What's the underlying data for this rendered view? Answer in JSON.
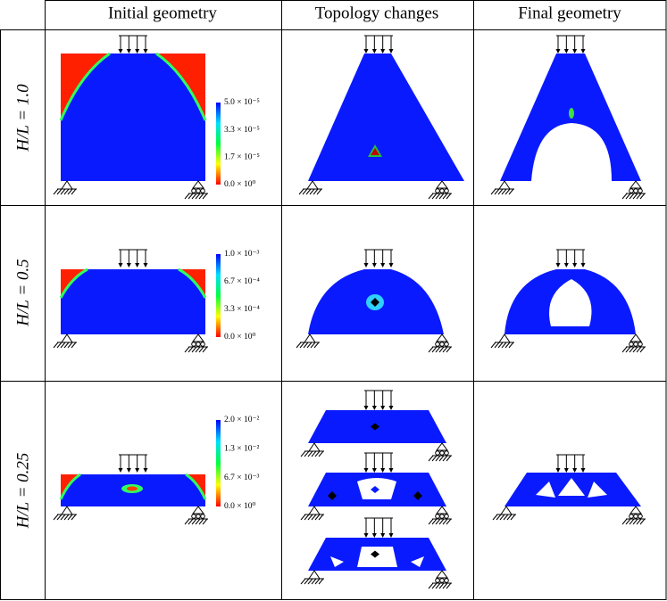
{
  "header": {
    "columns": [
      "Initial geometry",
      "Topology changes",
      "Final geometry"
    ]
  },
  "rows": [
    {
      "label": "H/L = 1.0",
      "colorbar": [
        "5.0 × 10⁻⁵",
        "3.3 × 10⁻⁵",
        "1.7 × 10⁻⁵",
        "0.0 × 10⁰"
      ]
    },
    {
      "label": "H/L = 0.5",
      "colorbar": [
        "1.0 × 10⁻³",
        "6.7 × 10⁻⁴",
        "3.3 × 10⁻⁴",
        "0.0 × 10⁰"
      ]
    },
    {
      "label": "H/L = 0.25",
      "colorbar": [
        "2.0 × 10⁻²",
        "1.3 × 10⁻²",
        "6.7 × 10⁻³",
        "0.0 × 10⁰"
      ]
    }
  ]
}
